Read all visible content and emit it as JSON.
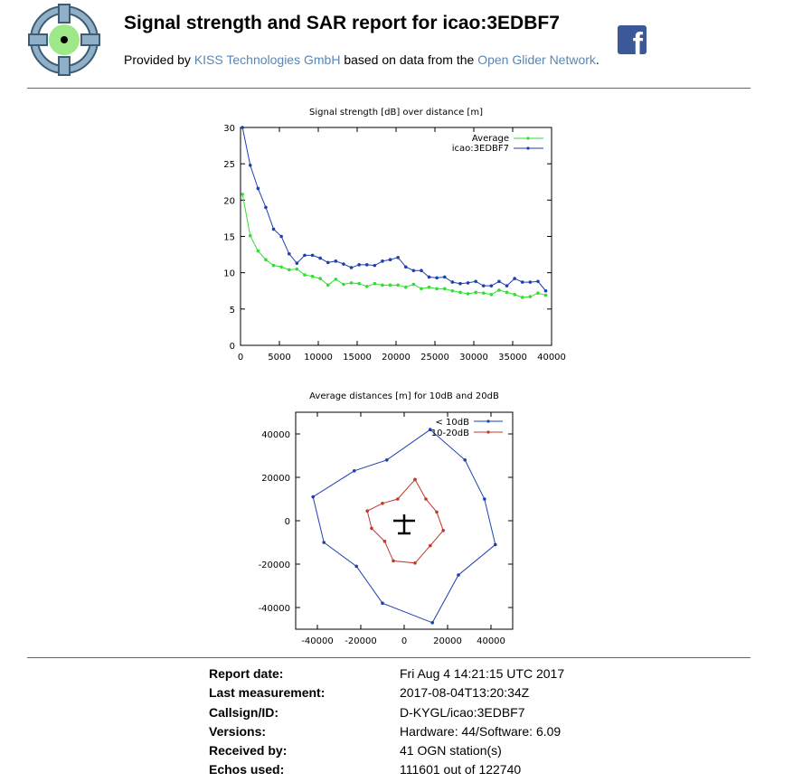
{
  "header": {
    "title": "Signal strength and SAR report for icao:3EDBF7",
    "provided_prefix": "Provided by ",
    "company_link": "KISS Technologies GmbH",
    "provided_middle": " based on data from the ",
    "network_link": "Open Glider Network",
    "provided_suffix": ".",
    "facebook_icon": "facebook-icon",
    "logo_icon": "crosshair-logo-icon"
  },
  "colors": {
    "link": "#5b86b4",
    "average": "#33dd33",
    "aircraft": "#1f3fb0",
    "band10_20": "#c0392b",
    "facebook": "#3b5998"
  },
  "chart_data": [
    {
      "type": "line",
      "title": "Signal strength [dB] over distance [m]",
      "xlim": [
        0,
        40000
      ],
      "ylim": [
        0,
        30
      ],
      "xticks": [
        0,
        5000,
        10000,
        15000,
        20000,
        25000,
        30000,
        35000,
        40000
      ],
      "yticks": [
        0,
        5,
        10,
        15,
        20,
        25,
        30
      ],
      "legend": "top-right",
      "series": [
        {
          "name": "Average",
          "color": "#33dd33",
          "x": [
            250,
            1250,
            2250,
            3250,
            4250,
            5250,
            6250,
            7250,
            8250,
            9250,
            10250,
            11250,
            12250,
            13250,
            14250,
            15250,
            16250,
            17250,
            18250,
            19250,
            20250,
            21250,
            22250,
            23250,
            24250,
            25250,
            26250,
            27250,
            28250,
            29250,
            30250,
            31250,
            32250,
            33250,
            34250,
            35250,
            36250,
            37250,
            38250,
            39250
          ],
          "y": [
            20.8,
            15.1,
            13.0,
            11.8,
            11.0,
            10.8,
            10.4,
            10.5,
            9.7,
            9.5,
            9.2,
            8.3,
            9.1,
            8.4,
            8.6,
            8.5,
            8.1,
            8.5,
            8.3,
            8.3,
            8.3,
            8.0,
            8.4,
            7.8,
            8.0,
            7.8,
            7.8,
            7.5,
            7.3,
            7.1,
            7.3,
            7.2,
            7.0,
            7.6,
            7.3,
            7.0,
            6.6,
            6.7,
            7.2,
            6.9
          ]
        },
        {
          "name": "icao:3EDBF7",
          "color": "#1f3fb0",
          "x": [
            250,
            1250,
            2250,
            3250,
            4250,
            5250,
            6250,
            7250,
            8250,
            9250,
            10250,
            11250,
            12250,
            13250,
            14250,
            15250,
            16250,
            17250,
            18250,
            19250,
            20250,
            21250,
            22250,
            23250,
            24250,
            25250,
            26250,
            27250,
            28250,
            29250,
            30250,
            31250,
            32250,
            33250,
            34250,
            35250,
            36250,
            37250,
            38250,
            39250
          ],
          "y": [
            30.0,
            24.8,
            21.6,
            19.0,
            16.0,
            15.0,
            12.6,
            11.3,
            12.4,
            12.4,
            12.0,
            11.4,
            11.6,
            11.2,
            10.7,
            11.1,
            11.1,
            11.0,
            11.6,
            11.8,
            12.1,
            10.8,
            10.3,
            10.3,
            9.4,
            9.3,
            9.4,
            8.7,
            8.5,
            8.6,
            8.8,
            8.2,
            8.2,
            8.8,
            8.2,
            9.2,
            8.7,
            8.7,
            8.8,
            7.5
          ]
        }
      ]
    },
    {
      "type": "scatter",
      "title": "Average distances [m] for 10dB and 20dB",
      "xlim": [
        -50000,
        50000
      ],
      "ylim": [
        -50000,
        50000
      ],
      "xticks": [
        -40000,
        -20000,
        0,
        20000,
        40000
      ],
      "yticks": [
        -40000,
        -20000,
        0,
        20000,
        40000
      ],
      "legend": "top-right",
      "series": [
        {
          "name": "< 10dB",
          "color": "#1f3fb0",
          "x": [
            12000,
            28000,
            37000,
            42000,
            25000,
            13000,
            -10000,
            -22000,
            -37000,
            -42000,
            -23000,
            -8000,
            12000
          ],
          "y": [
            42000,
            28000,
            10000,
            -11000,
            -25000,
            -47000,
            -38000,
            -21000,
            -10000,
            11000,
            23000,
            28000,
            42000
          ]
        },
        {
          "name": "10-20dB",
          "color": "#c0392b",
          "x": [
            5000,
            10000,
            15000,
            18000,
            12000,
            5000,
            -5000,
            -9000,
            -15000,
            -17000,
            -10000,
            -3000,
            5000
          ],
          "y": [
            19000,
            10000,
            4000,
            -4500,
            -11500,
            -19500,
            -18500,
            -9500,
            -3500,
            4500,
            8000,
            10000,
            19000
          ]
        }
      ],
      "marker": "aircraft-symbol"
    }
  ],
  "info": {
    "rows": [
      {
        "label": "Report date:",
        "value": "Fri Aug 4 14:21:15 UTC 2017"
      },
      {
        "label": "Last measurement:",
        "value": "2017-08-04T13:20:34Z"
      },
      {
        "label": "Callsign/ID:",
        "value": "D-KYGL/icao:3EDBF7"
      },
      {
        "label": "Versions:",
        "value": "Hardware: 44/Software: 6.09"
      },
      {
        "label": "Received by:",
        "value": "41 OGN station(s)"
      },
      {
        "label": "Echos used:",
        "value": "111601 out of 122740"
      }
    ]
  }
}
